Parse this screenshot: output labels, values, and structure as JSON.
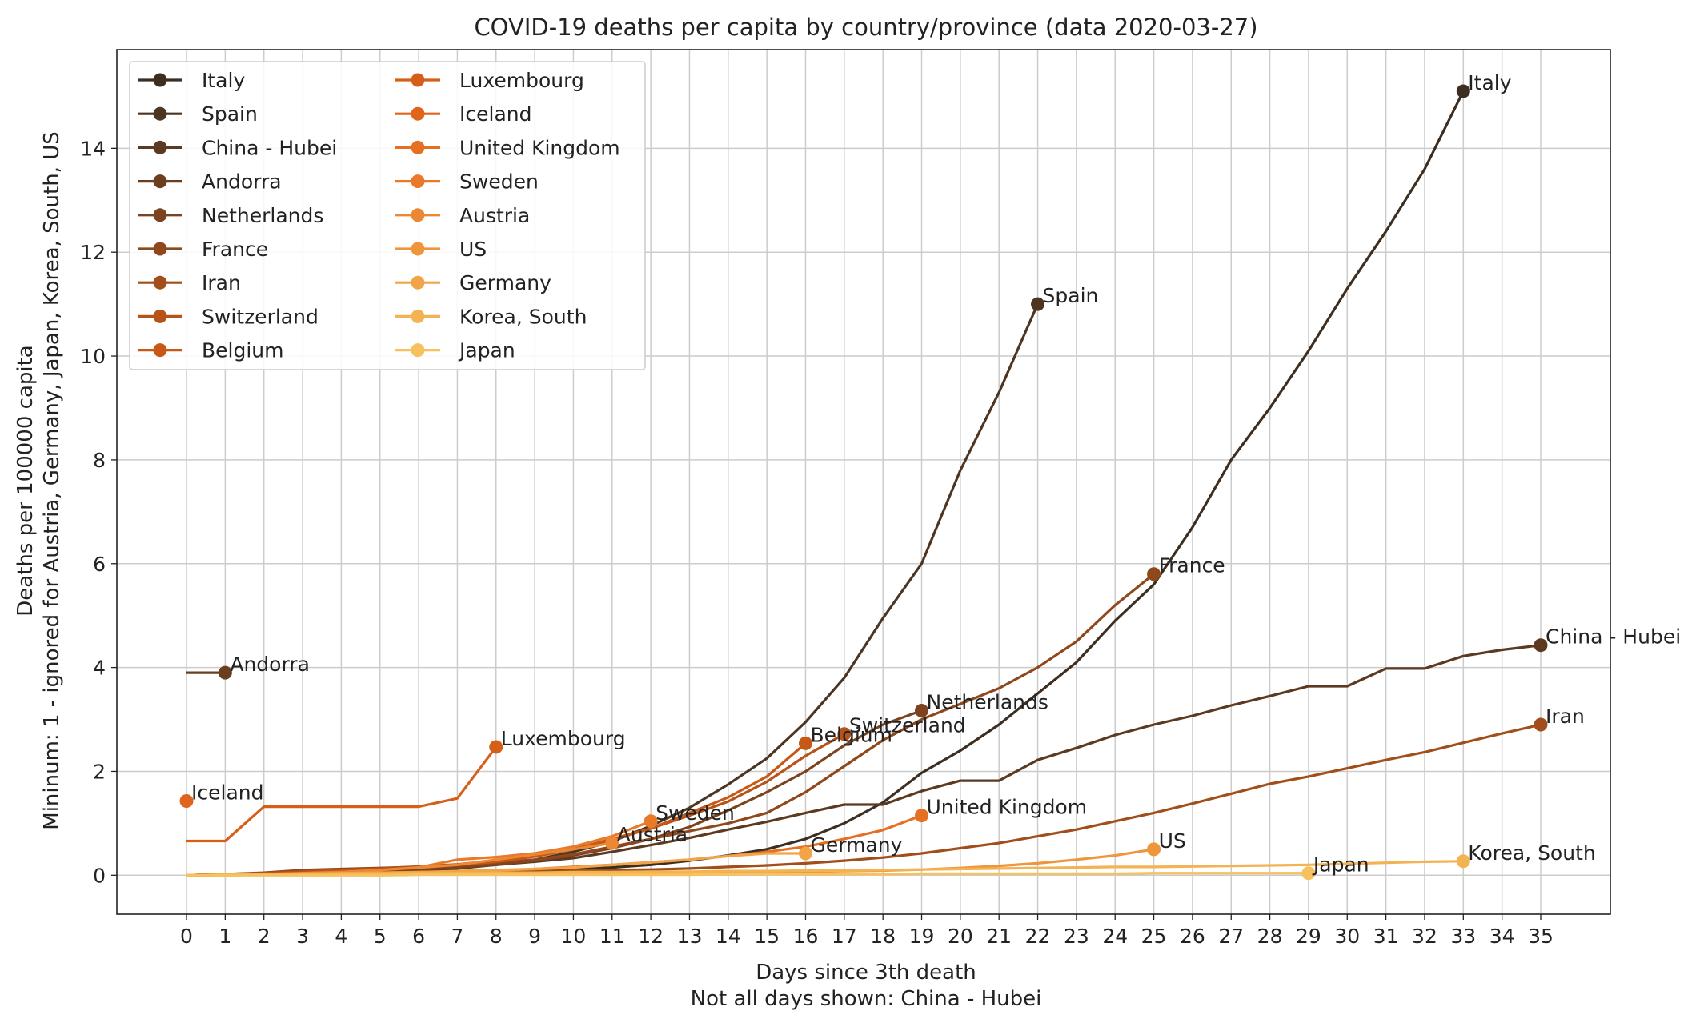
{
  "chart_data": {
    "type": "line",
    "title": "COVID-19 deaths per capita by country/province (data 2020-03-27)",
    "xlabel": "Days since 3th death",
    "xlabel2": "Not all days shown: China - Hubei",
    "ylabel": "Deaths per 100000 capita",
    "ylabel2": "Mininum: 1 - ignored for Austria, Germany, Japan, Korea, South, US",
    "xlim": [
      -1.8,
      36.8
    ],
    "ylim": [
      -0.75,
      15.9
    ],
    "xticks": [
      0,
      1,
      2,
      3,
      4,
      5,
      6,
      7,
      8,
      9,
      10,
      11,
      12,
      13,
      14,
      15,
      16,
      17,
      18,
      19,
      20,
      21,
      22,
      23,
      24,
      25,
      26,
      27,
      28,
      29,
      30,
      31,
      32,
      33,
      34,
      35
    ],
    "yticks": [
      0,
      2,
      4,
      6,
      8,
      10,
      12,
      14
    ],
    "grid": true,
    "legend_placement": "top-left",
    "series": [
      {
        "name": "Italy",
        "color": "#3d2e22",
        "label": "Italy",
        "x": [
          0,
          1,
          2,
          3,
          4,
          5,
          6,
          7,
          8,
          9,
          10,
          11,
          12,
          13,
          14,
          15,
          16,
          17,
          18,
          19,
          20,
          21,
          22,
          23,
          24,
          25,
          26,
          27,
          28,
          29,
          30,
          31,
          32,
          33
        ],
        "y": [
          0,
          0.01,
          0.02,
          0.03,
          0.04,
          0.05,
          0.06,
          0.08,
          0.09,
          0.1,
          0.12,
          0.15,
          0.2,
          0.28,
          0.38,
          0.5,
          0.7,
          1.0,
          1.4,
          1.97,
          2.4,
          2.9,
          3.5,
          4.1,
          4.9,
          5.6,
          6.7,
          8.0,
          9.0,
          10.1,
          11.3,
          12.4,
          13.6,
          15.1
        ]
      },
      {
        "name": "Spain",
        "color": "#4e3522",
        "label": "Spain",
        "x": [
          0,
          1,
          2,
          3,
          4,
          5,
          6,
          7,
          8,
          9,
          10,
          11,
          12,
          13,
          14,
          15,
          16,
          17,
          18,
          19,
          20,
          21,
          22
        ],
        "y": [
          0,
          0.01,
          0.02,
          0.04,
          0.06,
          0.08,
          0.1,
          0.13,
          0.2,
          0.3,
          0.45,
          0.65,
          0.95,
          1.3,
          1.75,
          2.25,
          2.95,
          3.8,
          4.95,
          6.0,
          7.8,
          9.3,
          11.0
        ]
      },
      {
        "name": "China - Hubei",
        "color": "#5c3a22",
        "label": "China - Hubei",
        "x": [
          0,
          1,
          2,
          3,
          4,
          5,
          6,
          7,
          8,
          9,
          10,
          11,
          12,
          13,
          14,
          15,
          16,
          17,
          18,
          19,
          20,
          21,
          22,
          23,
          24,
          25,
          26,
          27,
          28,
          29,
          30,
          31,
          32,
          33,
          34,
          35
        ],
        "y": [
          0,
          0.02,
          0.04,
          0.06,
          0.08,
          0.1,
          0.12,
          0.15,
          0.2,
          0.26,
          0.33,
          0.45,
          0.58,
          0.72,
          0.88,
          1.03,
          1.2,
          1.36,
          1.36,
          1.62,
          1.82,
          1.82,
          2.22,
          2.45,
          2.7,
          2.9,
          3.07,
          3.27,
          3.45,
          3.64,
          3.64,
          3.98,
          3.98,
          4.22,
          4.34,
          4.43
        ]
      },
      {
        "name": "Andorra",
        "color": "#6b3e20",
        "label": "Andorra",
        "x": [
          0,
          1
        ],
        "y": [
          3.9,
          3.9
        ]
      },
      {
        "name": "Netherlands",
        "color": "#7c431e",
        "label": "Netherlands",
        "x": [
          0,
          1,
          2,
          3,
          4,
          5,
          6,
          7,
          8,
          9,
          10,
          11,
          12,
          13,
          14,
          15,
          16,
          17,
          18,
          19
        ],
        "y": [
          0,
          0.01,
          0.02,
          0.03,
          0.05,
          0.08,
          0.11,
          0.15,
          0.2,
          0.28,
          0.38,
          0.52,
          0.7,
          0.93,
          1.25,
          1.6,
          2.0,
          2.5,
          2.9,
          3.17
        ]
      },
      {
        "name": "France",
        "color": "#8e481c",
        "label": "France",
        "x": [
          0,
          1,
          2,
          3,
          4,
          5,
          6,
          7,
          8,
          9,
          10,
          11,
          12,
          13,
          14,
          15,
          16,
          17,
          18,
          19,
          20,
          21,
          22,
          23,
          24,
          25
        ],
        "y": [
          0,
          0.02,
          0.05,
          0.1,
          0.12,
          0.14,
          0.16,
          0.18,
          0.25,
          0.3,
          0.4,
          0.55,
          0.7,
          0.85,
          1.0,
          1.2,
          1.6,
          2.1,
          2.6,
          3.0,
          3.3,
          3.6,
          4.0,
          4.5,
          5.2,
          5.8
        ]
      },
      {
        "name": "Iran",
        "color": "#a24e1a",
        "label": "Iran",
        "x": [
          0,
          1,
          2,
          3,
          4,
          5,
          6,
          7,
          8,
          9,
          10,
          11,
          12,
          13,
          14,
          15,
          16,
          17,
          18,
          19,
          20,
          21,
          22,
          23,
          24,
          25,
          26,
          27,
          28,
          29,
          30,
          31,
          32,
          33,
          34,
          35
        ],
        "y": [
          0,
          0.01,
          0.02,
          0.02,
          0.03,
          0.04,
          0.05,
          0.06,
          0.07,
          0.08,
          0.09,
          0.1,
          0.11,
          0.13,
          0.16,
          0.19,
          0.23,
          0.28,
          0.34,
          0.42,
          0.52,
          0.62,
          0.75,
          0.88,
          1.04,
          1.2,
          1.38,
          1.57,
          1.76,
          1.9,
          2.06,
          2.22,
          2.37,
          2.55,
          2.73,
          2.9
        ]
      },
      {
        "name": "Switzerland",
        "color": "#b55318",
        "label": "Switzerland",
        "x": [
          0,
          1,
          2,
          3,
          4,
          5,
          6,
          7,
          8,
          9,
          10,
          11,
          12,
          13,
          14,
          15,
          16,
          17
        ],
        "y": [
          0,
          0.02,
          0.04,
          0.07,
          0.1,
          0.13,
          0.17,
          0.21,
          0.28,
          0.36,
          0.5,
          0.68,
          0.9,
          1.15,
          1.42,
          1.8,
          2.3,
          2.72
        ]
      },
      {
        "name": "Belgium",
        "color": "#c75816",
        "label": "Belgium",
        "x": [
          0,
          1,
          2,
          3,
          4,
          5,
          6,
          7,
          8,
          9,
          10,
          11,
          12,
          13,
          14,
          15,
          16
        ],
        "y": [
          0,
          0.01,
          0.03,
          0.05,
          0.08,
          0.1,
          0.14,
          0.2,
          0.26,
          0.36,
          0.5,
          0.7,
          0.9,
          1.2,
          1.5,
          1.9,
          2.54
        ]
      },
      {
        "name": "Luxembourg",
        "color": "#d65f18",
        "label": "Luxembourg",
        "x": [
          0,
          1,
          2,
          3,
          4,
          5,
          6,
          7,
          8
        ],
        "y": [
          0.66,
          0.66,
          1.32,
          1.32,
          1.32,
          1.32,
          1.32,
          1.48,
          2.47
        ]
      },
      {
        "name": "Iceland",
        "color": "#e0651c",
        "label": "Iceland",
        "x": [
          0
        ],
        "y": [
          1.43
        ]
      },
      {
        "name": "United Kingdom",
        "color": "#e56f22",
        "label": "United Kingdom",
        "x": [
          0,
          1,
          2,
          3,
          4,
          5,
          6,
          7,
          8,
          9,
          10,
          11,
          12,
          13,
          14,
          15,
          16,
          17,
          18,
          19
        ],
        "y": [
          0,
          0.01,
          0.02,
          0.03,
          0.04,
          0.05,
          0.06,
          0.07,
          0.09,
          0.12,
          0.16,
          0.2,
          0.25,
          0.3,
          0.37,
          0.45,
          0.55,
          0.7,
          0.87,
          1.15
        ]
      },
      {
        "name": "Sweden",
        "color": "#e97a2a",
        "label": "Sweden",
        "x": [
          0,
          1,
          2,
          3,
          4,
          5,
          6,
          7,
          8,
          9,
          10,
          11,
          12
        ],
        "y": [
          0,
          0.01,
          0.02,
          0.04,
          0.06,
          0.1,
          0.15,
          0.3,
          0.35,
          0.42,
          0.55,
          0.75,
          1.04
        ]
      },
      {
        "name": "Austria",
        "color": "#ec8833",
        "label": "Austria",
        "x": [
          0,
          1,
          2,
          3,
          4,
          5,
          6,
          7,
          8,
          9,
          10,
          11
        ],
        "y": [
          0,
          0.01,
          0.02,
          0.04,
          0.06,
          0.1,
          0.15,
          0.2,
          0.3,
          0.4,
          0.5,
          0.62
        ]
      },
      {
        "name": "US",
        "color": "#ef963d",
        "label": "US",
        "x": [
          0,
          1,
          2,
          3,
          4,
          5,
          6,
          7,
          8,
          9,
          10,
          11,
          12,
          13,
          14,
          15,
          16,
          17,
          18,
          19,
          20,
          21,
          22,
          23,
          24,
          25
        ],
        "y": [
          0,
          0.0,
          0.01,
          0.01,
          0.01,
          0.01,
          0.02,
          0.02,
          0.02,
          0.02,
          0.03,
          0.03,
          0.03,
          0.04,
          0.05,
          0.06,
          0.07,
          0.08,
          0.09,
          0.11,
          0.14,
          0.18,
          0.23,
          0.3,
          0.38,
          0.5
        ]
      },
      {
        "name": "Germany",
        "color": "#f1a548",
        "label": "Germany",
        "x": [
          0,
          1,
          2,
          3,
          4,
          5,
          6,
          7,
          8,
          9,
          10,
          11,
          12,
          13,
          14,
          15,
          16
        ],
        "y": [
          0,
          0.01,
          0.02,
          0.03,
          0.04,
          0.05,
          0.06,
          0.08,
          0.1,
          0.12,
          0.15,
          0.2,
          0.25,
          0.3,
          0.37,
          0.42,
          0.42
        ]
      },
      {
        "name": "Korea, South",
        "color": "#f3b352",
        "label": "Korea, South",
        "x": [
          0,
          1,
          2,
          3,
          4,
          5,
          6,
          7,
          8,
          9,
          10,
          11,
          12,
          13,
          14,
          15,
          16,
          17,
          18,
          19,
          20,
          21,
          22,
          23,
          24,
          25,
          26,
          27,
          28,
          29,
          30,
          31,
          32,
          33
        ],
        "y": [
          0,
          0.01,
          0.02,
          0.02,
          0.03,
          0.03,
          0.04,
          0.04,
          0.05,
          0.05,
          0.06,
          0.06,
          0.07,
          0.07,
          0.08,
          0.08,
          0.09,
          0.09,
          0.1,
          0.11,
          0.12,
          0.13,
          0.14,
          0.15,
          0.16,
          0.16,
          0.17,
          0.18,
          0.19,
          0.2,
          0.22,
          0.24,
          0.26,
          0.27
        ]
      },
      {
        "name": "Japan",
        "color": "#f6c15e",
        "label": "Japan",
        "x": [
          0,
          1,
          2,
          3,
          4,
          5,
          6,
          7,
          8,
          9,
          10,
          11,
          12,
          13,
          14,
          15,
          16,
          17,
          18,
          19,
          20,
          21,
          22,
          23,
          24,
          25,
          26,
          27,
          28,
          29
        ],
        "y": [
          0,
          0.0,
          0.0,
          0.0,
          0.0,
          0.0,
          0.01,
          0.01,
          0.01,
          0.01,
          0.01,
          0.01,
          0.01,
          0.01,
          0.02,
          0.02,
          0.02,
          0.02,
          0.02,
          0.03,
          0.03,
          0.03,
          0.03,
          0.03,
          0.03,
          0.04,
          0.04,
          0.04,
          0.04,
          0.04
        ]
      }
    ]
  }
}
